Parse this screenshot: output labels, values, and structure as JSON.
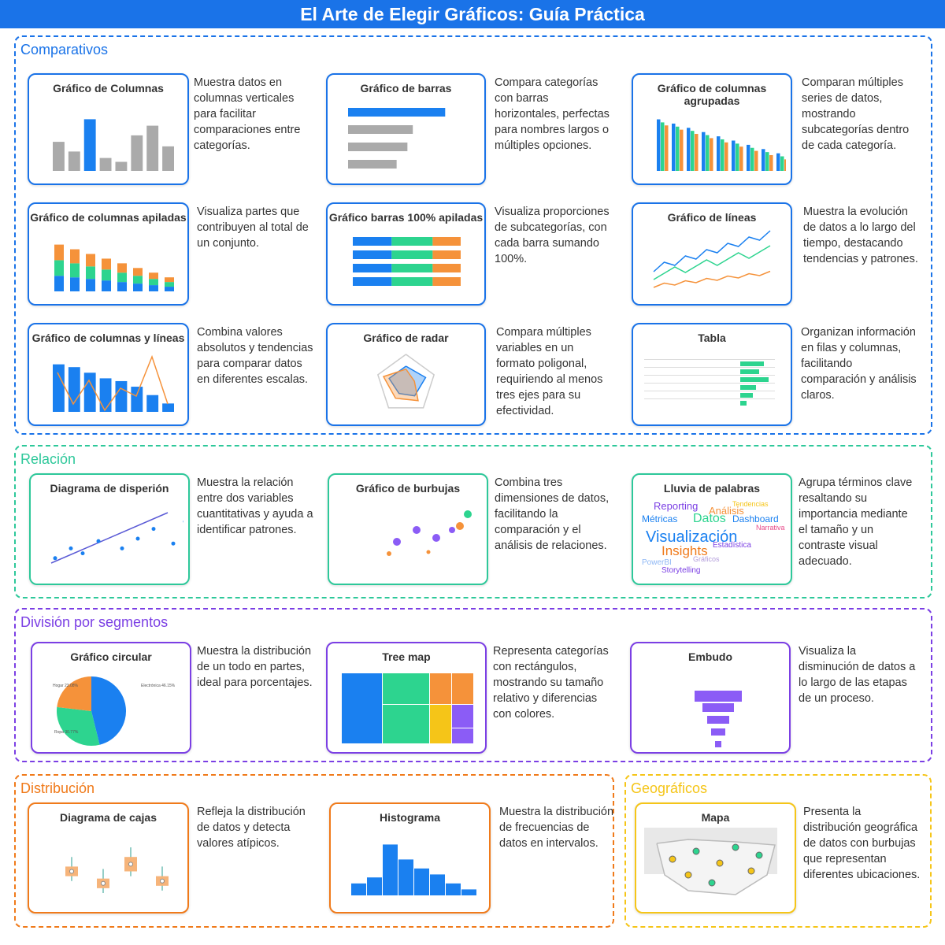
{
  "header": {
    "title": "El Arte de Elegir Gráficos: Guía Práctica"
  },
  "sections": [
    {
      "title": "Comparativos",
      "color": "#1a73e8",
      "cards": [
        {
          "title": "Gráfico de Columnas",
          "description": "Muestra datos en columnas verticales para facilitar comparaciones entre categorías."
        },
        {
          "title": "Gráfico de  barras",
          "description": "Compara categorías con barras horizontales, perfectas para nombres largos o múltiples opciones."
        },
        {
          "title": "Gráfico de columnas agrupadas",
          "description": "Comparan múltiples series de datos, mostrando subcategorías dentro de cada categoría."
        },
        {
          "title": "Gráfico de columnas apiladas",
          "description": "Visualiza partes que contribuyen al total de un conjunto."
        },
        {
          "title": "Gráfico barras 100% apiladas",
          "description": "Visualiza proporciones de subcategorías, con cada barra sumando 100%."
        },
        {
          "title": "Gráfico de líneas",
          "description": "Muestra la evolución de datos a lo largo del tiempo, destacando tendencias y patrones."
        },
        {
          "title": "Gráfico de columnas y líneas",
          "description": "Combina valores absolutos y tendencias para comparar datos en diferentes escalas."
        },
        {
          "title": "Gráfico de radar",
          "description": "Compara múltiples variables en un formato poligonal, requiriendo al menos tres ejes para su efectividad."
        },
        {
          "title": "Tabla",
          "description": "Organizan información en filas y columnas, facilitando comparación y análisis claros."
        }
      ]
    },
    {
      "title": "Relación",
      "color": "#2ec89a",
      "cards": [
        {
          "title": "Diagrama de disperión",
          "description": "Muestra la relación entre dos variables cuantitativas y ayuda a identificar patrones."
        },
        {
          "title": "Gráfico de burbujas",
          "description": "Combina tres dimensiones de datos, facilitando la comparación y el análisis de relaciones."
        },
        {
          "title": "Lluvia de palabras",
          "description": "Agrupa términos clave resaltando su importancia mediante el tamaño y un contraste visual adecuado.",
          "words": [
            "Reporting",
            "Análisis",
            "Tendencias",
            "Métricas",
            "Datos",
            "Dashboard",
            "Narrativa",
            "Visualización",
            "Insights",
            "Estadística",
            "PowerBI",
            "Gráficos",
            "Storytelling"
          ]
        }
      ]
    },
    {
      "title": "División por segmentos",
      "color": "#7b3fe4",
      "cards": [
        {
          "title": "Gráfico circular",
          "description": "Muestra la distribución de un todo en partes, ideal para porcentajes.",
          "labels": [
            "Hogar 23.08%",
            "Electrónica 46.15%",
            "Ropa 30.77%"
          ]
        },
        {
          "title": "Tree map",
          "description": "Representa categorías con rectángulos, mostrando su tamaño relativo y diferencias con colores."
        },
        {
          "title": "Embudo",
          "description": "Visualiza la disminución de datos a lo largo de las etapas de un proceso."
        }
      ]
    },
    {
      "title": "Distribución",
      "color": "#f07a1a",
      "cards": [
        {
          "title": "Diagrama de cajas",
          "description": "Refleja la distribución de datos y detecta valores atípicos."
        },
        {
          "title": "Histograma",
          "description": "Muestra la distribución de frecuencias de datos en intervalos."
        }
      ]
    },
    {
      "title": "Geográficos",
      "color": "#f5c518",
      "cards": [
        {
          "title": "Mapa",
          "description": "Presenta la distribución geográfica de datos con burbujas que representan diferentes ubicaciones."
        }
      ]
    }
  ]
}
